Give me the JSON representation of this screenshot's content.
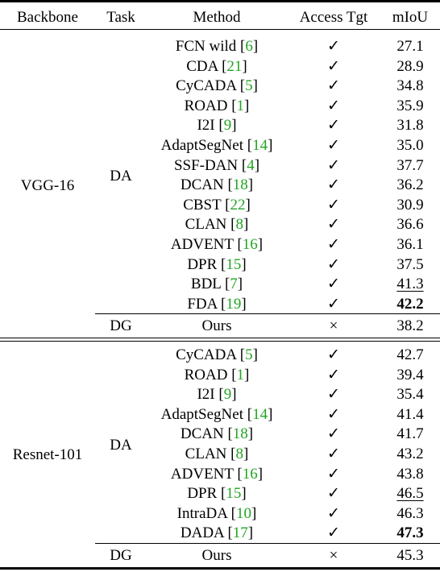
{
  "header": {
    "backbone": "Backbone",
    "task": "Task",
    "method": "Method",
    "access": "Access Tgt",
    "miou": "mIoU"
  },
  "groups": [
    {
      "backbone": "VGG-16",
      "da_label": "DA",
      "dg_label": "DG",
      "rows": [
        {
          "name": "FCN wild",
          "ref": "6",
          "access": "✓",
          "miou": "27.1",
          "style": ""
        },
        {
          "name": "CDA",
          "ref": "21",
          "access": "✓",
          "miou": "28.9",
          "style": ""
        },
        {
          "name": "CyCADA",
          "ref": "5",
          "access": "✓",
          "miou": "34.8",
          "style": ""
        },
        {
          "name": "ROAD",
          "ref": "1",
          "access": "✓",
          "miou": "35.9",
          "style": ""
        },
        {
          "name": "I2I",
          "ref": "9",
          "access": "✓",
          "miou": "31.8",
          "style": ""
        },
        {
          "name": "AdaptSegNet",
          "ref": "14",
          "access": "✓",
          "miou": "35.0",
          "style": ""
        },
        {
          "name": "SSF-DAN",
          "ref": "4",
          "access": "✓",
          "miou": "37.7",
          "style": ""
        },
        {
          "name": "DCAN",
          "ref": "18",
          "access": "✓",
          "miou": "36.2",
          "style": ""
        },
        {
          "name": "CBST",
          "ref": "22",
          "access": "✓",
          "miou": "30.9",
          "style": ""
        },
        {
          "name": "CLAN",
          "ref": "8",
          "access": "✓",
          "miou": "36.6",
          "style": ""
        },
        {
          "name": "ADVENT",
          "ref": "16",
          "access": "✓",
          "miou": "36.1",
          "style": ""
        },
        {
          "name": "DPR",
          "ref": "15",
          "access": "✓",
          "miou": "37.5",
          "style": ""
        },
        {
          "name": "BDL",
          "ref": "7",
          "access": "✓",
          "miou": "41.3",
          "style": "underline"
        },
        {
          "name": "FDA",
          "ref": "19",
          "access": "✓",
          "miou": "42.2",
          "style": "bold"
        }
      ],
      "ours": {
        "name": "Ours",
        "access": "×",
        "miou": "38.2"
      }
    },
    {
      "backbone": "Resnet-101",
      "da_label": "DA",
      "dg_label": "DG",
      "rows": [
        {
          "name": "CyCADA",
          "ref": "5",
          "access": "✓",
          "miou": "42.7",
          "style": ""
        },
        {
          "name": "ROAD",
          "ref": "1",
          "access": "✓",
          "miou": "39.4",
          "style": ""
        },
        {
          "name": "I2I",
          "ref": "9",
          "access": "✓",
          "miou": "35.4",
          "style": ""
        },
        {
          "name": "AdaptSegNet",
          "ref": "14",
          "access": "✓",
          "miou": "41.4",
          "style": ""
        },
        {
          "name": "DCAN",
          "ref": "18",
          "access": "✓",
          "miou": "41.7",
          "style": ""
        },
        {
          "name": "CLAN",
          "ref": "8",
          "access": "✓",
          "miou": "43.2",
          "style": ""
        },
        {
          "name": "ADVENT",
          "ref": "16",
          "access": "✓",
          "miou": "43.8",
          "style": ""
        },
        {
          "name": "DPR",
          "ref": "15",
          "access": "✓",
          "miou": "46.5",
          "style": "underline"
        },
        {
          "name": "IntraDA",
          "ref": "10",
          "access": "✓",
          "miou": "46.3",
          "style": ""
        },
        {
          "name": "DADA",
          "ref": "17",
          "access": "✓",
          "miou": "47.3",
          "style": "bold"
        }
      ],
      "ours": {
        "name": "Ours",
        "access": "×",
        "miou": "45.3"
      }
    }
  ],
  "colors": {
    "citation": "#22a422",
    "text": "#000000"
  }
}
